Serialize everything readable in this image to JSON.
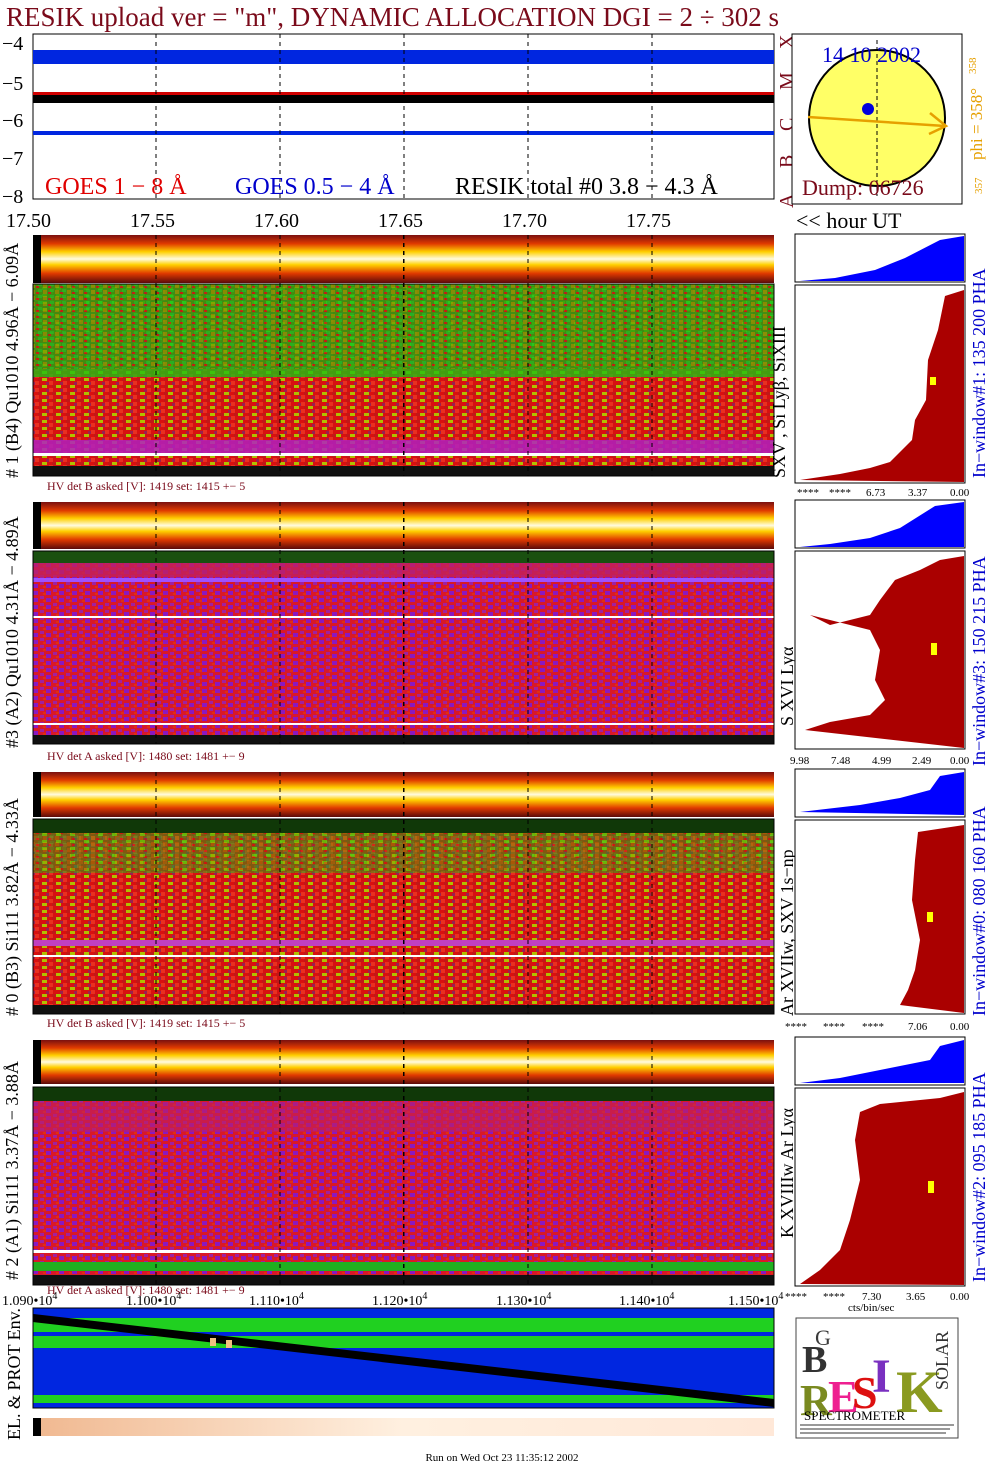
{
  "title": "RESIK upload ver = \"m\", DYNAMIC ALLOCATION  DGI =   2 ÷ 302 s",
  "colors": {
    "goes_long": "#e00000",
    "goes_short": "#0000cc",
    "resik_total": "#000000",
    "header_red": "#7a0a1a",
    "hist_blue": "#0000ff",
    "hist_red": "#aa0000",
    "orbit": "#e6a000",
    "sun_fill": "#ffff66"
  },
  "icons": [
    "sun-disc-icon",
    "resik-logo"
  ],
  "lightcurve": {
    "y_ticks": [
      "−4",
      "−5",
      "−6",
      "−7",
      "−8"
    ],
    "goes_long_label": "GOES 1 − 8 Å",
    "goes_short_label": "GOES 0.5 − 4 Å",
    "resik_label": "RESIK total #0  3.8 − 4.3 Å",
    "class_letters": [
      "X",
      "M",
      "C",
      "B",
      "A"
    ],
    "x_ticks": [
      "17.50",
      "17.55",
      "17.60",
      "17.65",
      "17.70",
      "17.75"
    ],
    "x_unit_label": "<< hour UT"
  },
  "sun_panel": {
    "date": "14 10 2002",
    "dump": "Dump: 06726",
    "phi_label": "phi = 358°",
    "phi_sub": "358",
    "phi_low": "357"
  },
  "channels": [
    {
      "side_label": "# 1 (B4) Qu1010 4.96Å − 6.09Å",
      "lines_label": "SXV , Si Lyβ, SiXIII",
      "window_label": "In−window#1:  135 200 PHA",
      "hv_text": "HV det B asked [V]:  1419 set:  1415  +−   5",
      "axis_ticks": [
        "****",
        "****",
        "6.73",
        "3.37",
        "0.00"
      ]
    },
    {
      "side_label": "#3 (A2) Qu1010  4.31Å − 4.89Å",
      "lines_label": "S XVI Lyα",
      "window_label": "In−window#3:  150 215 PHA",
      "hv_text": "HV det A asked [V]:  1480 set:  1481  +−   9",
      "axis_ticks": [
        "9.98",
        "7.48",
        "4.99",
        "2.49",
        "0.00"
      ]
    },
    {
      "side_label": "# 0 (B3) Si111  3.82Å − 4.33Å",
      "lines_label": "Ar XVIIw,  SXV 1s−np",
      "window_label": "In−window#0:  080 160 PHA",
      "hv_text": "HV det B asked [V]:  1419 set:  1415  +−   5",
      "axis_ticks": [
        "****",
        "****",
        "****",
        "7.06",
        "0.00"
      ]
    },
    {
      "side_label": "# 2 (A1) Si111  3.37Å − 3.88Å",
      "lines_label": "K XVIIIw  Ar Lyα",
      "window_label": "In−window#2:  095 185 PHA",
      "hv_text": "HV det A asked [V]:  1480 set:  1481  +−   9",
      "axis_ticks": [
        "****",
        "****",
        "7.30",
        "3.65",
        "0.00"
      ]
    }
  ],
  "hist_unit": "cts/bin/sec",
  "env": {
    "label": "EL. & PROT Env.",
    "x_ticks": [
      "1.090•",
      "1.100•",
      "1.110•",
      "1.120•",
      "1.130•",
      "1.140•",
      "1.150•"
    ],
    "x_tick_base": "10",
    "x_tick_exp": "4"
  },
  "logo": {
    "letters": [
      "B",
      "R",
      "G",
      "E",
      "S",
      "I",
      "K",
      "SOLAR"
    ],
    "caption": "SPECTROMETER",
    "fine_print": ""
  },
  "footer": "Run on Wed Oct 23 11:35:12 2002"
}
